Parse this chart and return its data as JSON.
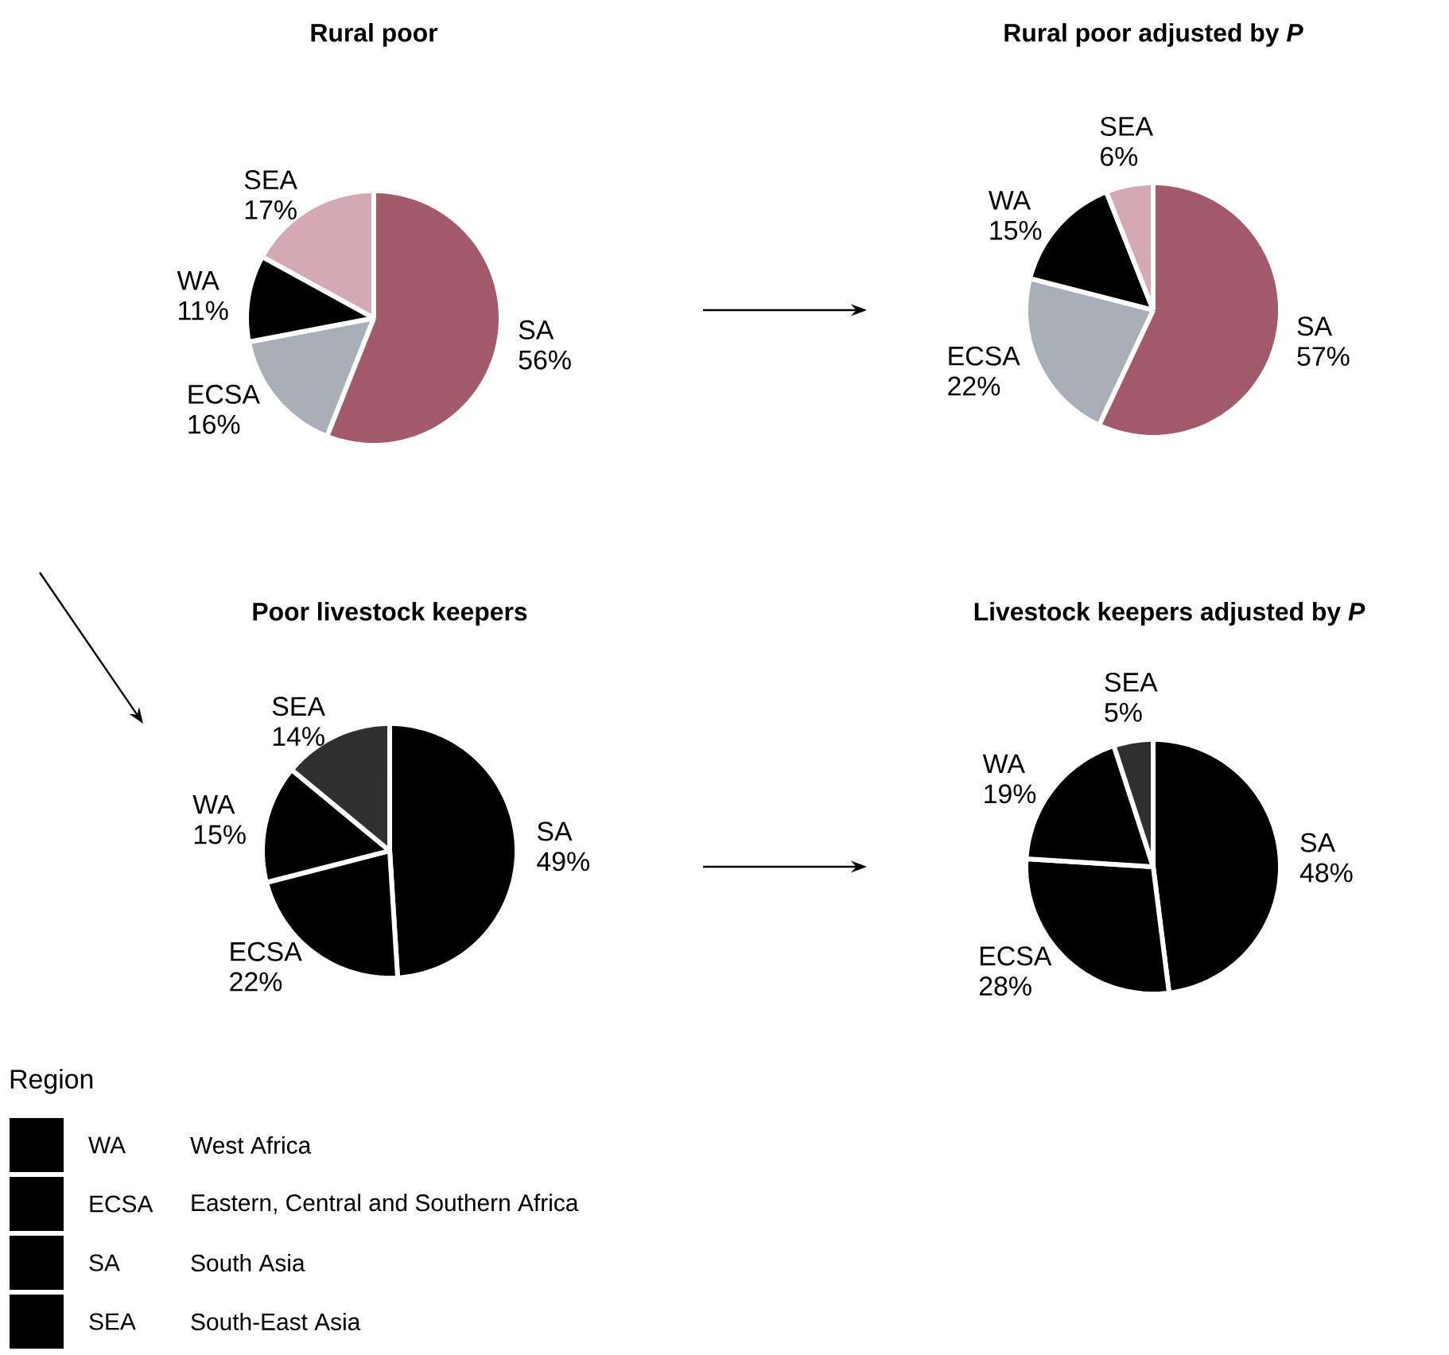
{
  "chart_data": [
    {
      "type": "pie",
      "title": "Rural poor",
      "categories": [
        "SA",
        "ECSA",
        "WA",
        "SEA"
      ],
      "values": [
        56,
        16,
        11,
        17
      ],
      "value_labels": [
        "56%",
        "16%",
        "11%",
        "17%"
      ],
      "colors": [
        "#a35a6a",
        "#a9afb8",
        "#000000",
        "#d4a9b4"
      ]
    },
    {
      "type": "pie",
      "title": "Rural poor adjusted by *P*",
      "categories": [
        "SA",
        "ECSA",
        "WA",
        "SEA"
      ],
      "values": [
        57,
        22,
        15,
        6
      ],
      "value_labels": [
        "57%",
        "22%",
        "15%",
        "6%"
      ],
      "colors": [
        "#a35a6a",
        "#a9afb8",
        "#000000",
        "#d4a9b4"
      ]
    },
    {
      "type": "pie",
      "title": "Poor livestock keepers",
      "categories": [
        "SA",
        "ECSA",
        "WA",
        "SEA"
      ],
      "values": [
        49,
        22,
        15,
        14
      ],
      "value_labels": [
        "49%",
        "22%",
        "15%",
        "14%"
      ],
      "colors": [
        "#000000",
        "#000000",
        "#000000",
        "#303030"
      ]
    },
    {
      "type": "pie",
      "title": "Livestock keepers adjusted by *P*",
      "categories": [
        "SA",
        "ECSA",
        "WA",
        "SEA"
      ],
      "values": [
        48,
        28,
        19,
        5
      ],
      "value_labels": [
        "48%",
        "28%",
        "19%",
        "5%"
      ],
      "colors": [
        "#000000",
        "#000000",
        "#000000",
        "#303030"
      ]
    },
    {
      "type": "other",
      "title": "Region",
      "categories": [
        "WA",
        "ECSA",
        "SA",
        "SEA"
      ],
      "annotations": [
        "West Africa",
        "Eastern, Central and Southern Africa",
        "South Asia",
        "South-East Asia"
      ],
      "colors": [
        "#000000",
        "#000000",
        "#000000",
        "#000000"
      ]
    }
  ]
}
